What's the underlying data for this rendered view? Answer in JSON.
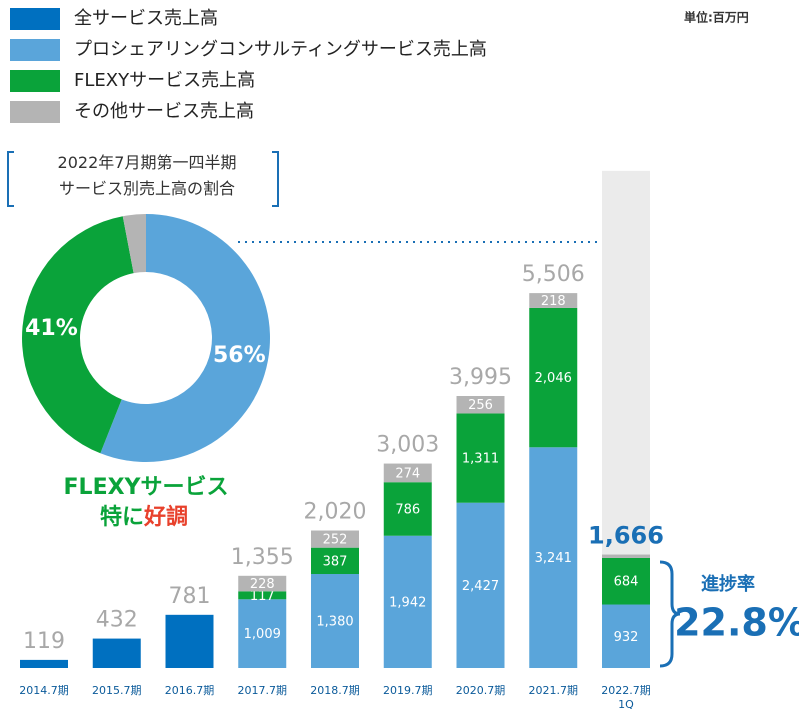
{
  "chart_data": {
    "type": "bar",
    "stacked": true,
    "unit": "単位:百万円",
    "categories": [
      "2014.7期",
      "2015.7期",
      "2016.7期",
      "2017.7期",
      "2018.7期",
      "2019.7期",
      "2020.7期",
      "2021.7期",
      "2022.7期\n1Q"
    ],
    "series": [
      {
        "name": "全サービス売上高",
        "color": "#0070c0",
        "values": [
          119,
          432,
          781,
          null,
          null,
          null,
          null,
          null,
          null
        ],
        "value_labels": [
          null,
          null,
          null,
          null,
          null,
          null,
          null,
          null,
          null
        ]
      },
      {
        "name": "プロシェアリングコンサルティングサービス売上高",
        "color": "#5aa5da",
        "values": [
          null,
          null,
          null,
          1009,
          1380,
          1942,
          2427,
          3241,
          932
        ],
        "value_labels": [
          null,
          null,
          null,
          "1,009",
          "1,380",
          "1,942",
          "2,427",
          "3,241",
          "932"
        ]
      },
      {
        "name": "FLEXYサービス売上高",
        "color": "#0aa33a",
        "values": [
          null,
          null,
          null,
          117,
          387,
          786,
          1311,
          2046,
          684
        ],
        "value_labels": [
          null,
          null,
          null,
          "117",
          "387",
          "786",
          "1,311",
          "2,046",
          "684"
        ]
      },
      {
        "name": "その他サービス売上高",
        "color": "#b4b4b4",
        "values": [
          null,
          null,
          null,
          228,
          252,
          274,
          256,
          218,
          50
        ],
        "value_labels": [
          null,
          null,
          null,
          "228",
          "252",
          "274",
          "256",
          "218",
          null
        ]
      }
    ],
    "totals": [
      119,
      432,
      781,
      1355,
      2020,
      3003,
      3995,
      5506,
      1666
    ],
    "total_labels": [
      "119",
      "432",
      "781",
      "1,355",
      "2,020",
      "3,003",
      "3,995",
      "5,506",
      "1,666"
    ],
    "full_year_bar": {
      "index": 8,
      "value": 7300,
      "color": "#ebebeb"
    },
    "ylim": [
      0,
      10000
    ],
    "progress": {
      "label": "進捗率",
      "value": 22.8,
      "value_label": "22.8%"
    },
    "donut": {
      "type": "pie",
      "title": "2022年7月期第一四半期\nサービス別売上高の割合",
      "values": [
        56,
        41,
        3
      ],
      "value_labels": [
        "56%",
        "41%",
        null
      ],
      "colors": [
        "#5aa5da",
        "#0aa33a",
        "#b4b4b4"
      ]
    },
    "annotation": {
      "line1": "FLEXYサービス",
      "line2a": "特に",
      "line2b": "好調"
    }
  }
}
